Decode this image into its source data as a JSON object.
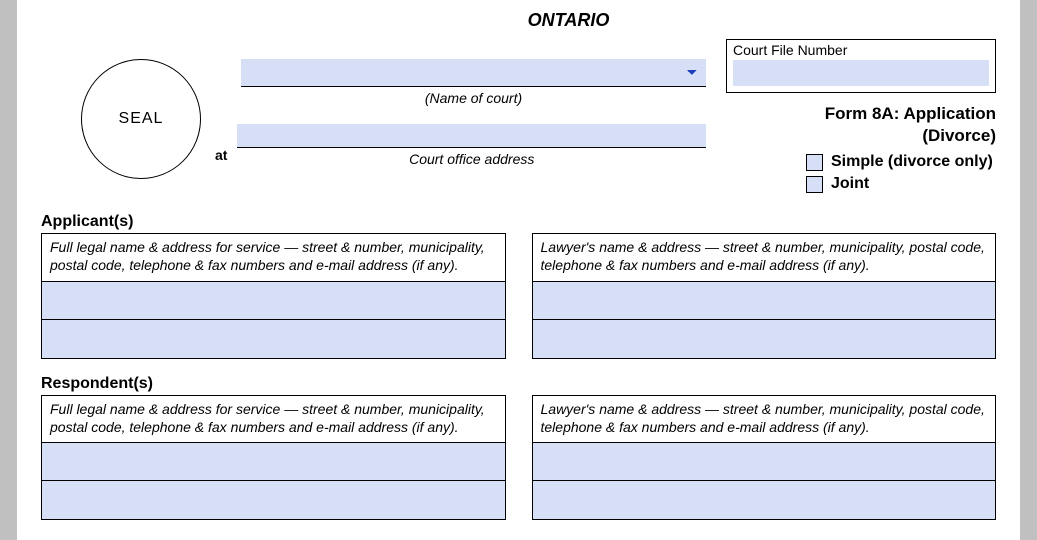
{
  "title": "ONTARIO",
  "seal_label": "SEAL",
  "court_name_label": "(Name of court)",
  "at_label": "at",
  "court_address_label": "Court office address",
  "court_file_number_label": "Court File Number",
  "form_title_line1": "Form 8A:  Application",
  "form_title_line2": "(Divorce)",
  "checkbox_simple": "Simple (divorce only)",
  "checkbox_joint": "Joint",
  "colors": {
    "field_bg": "#d6dff5",
    "page_bg": "#ffffff",
    "outer_bg": "#c0c0c0",
    "border": "#000000"
  },
  "sections": {
    "applicant": {
      "heading": "Applicant(s)",
      "left_header": "Full legal name & address for service — street & number, municipality, postal code, telephone & fax numbers and e-mail address (if any).",
      "right_header": "Lawyer's name & address — street & number, municipality, postal code, telephone & fax numbers and e-mail address (if any)."
    },
    "respondent": {
      "heading": "Respondent(s)",
      "left_header": "Full legal name & address for service — street & number, municipality, postal code, telephone & fax numbers and e-mail address (if any).",
      "right_header": "Lawyer's name & address — street & number, municipality, postal code, telephone & fax numbers and e-mail address (if any)."
    }
  }
}
